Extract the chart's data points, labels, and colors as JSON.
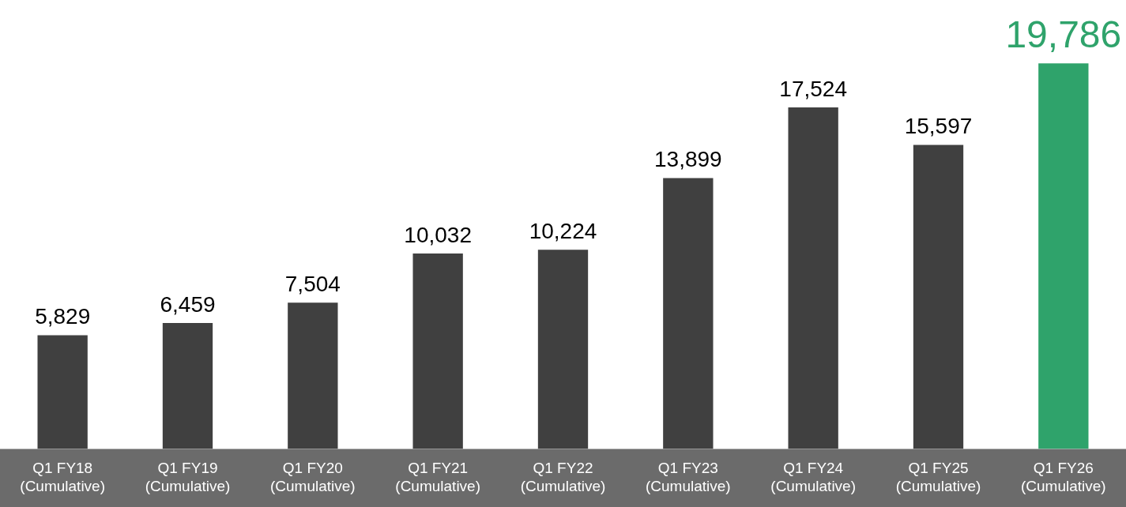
{
  "chart_data": {
    "type": "bar",
    "categories": [
      "Q1 FY18\n(Cumulative)",
      "Q1 FY19\n(Cumulative)",
      "Q1 FY20\n(Cumulative)",
      "Q1 FY21\n(Cumulative)",
      "Q1 FY22\n(Cumulative)",
      "Q1 FY23\n(Cumulative)",
      "Q1 FY24\n(Cumulative)",
      "Q1 FY25\n(Cumulative)",
      "Q1 FY26\n(Cumulative)"
    ],
    "values": [
      5829,
      6459,
      7504,
      10032,
      10224,
      13899,
      17524,
      15597,
      19786
    ],
    "color": "#404040",
    "colors": [
      "#404040",
      "#404040",
      "#404040",
      "#404040",
      "#404040",
      "#404040",
      "#404040",
      "#404040",
      "#2fa36b"
    ],
    "value_labels": [
      "5,829",
      "6,459",
      "7,504",
      "10,032",
      "10,224",
      "13,899",
      "17,524",
      "15,597",
      "19,786"
    ],
    "grid": false,
    "legend": false
  }
}
